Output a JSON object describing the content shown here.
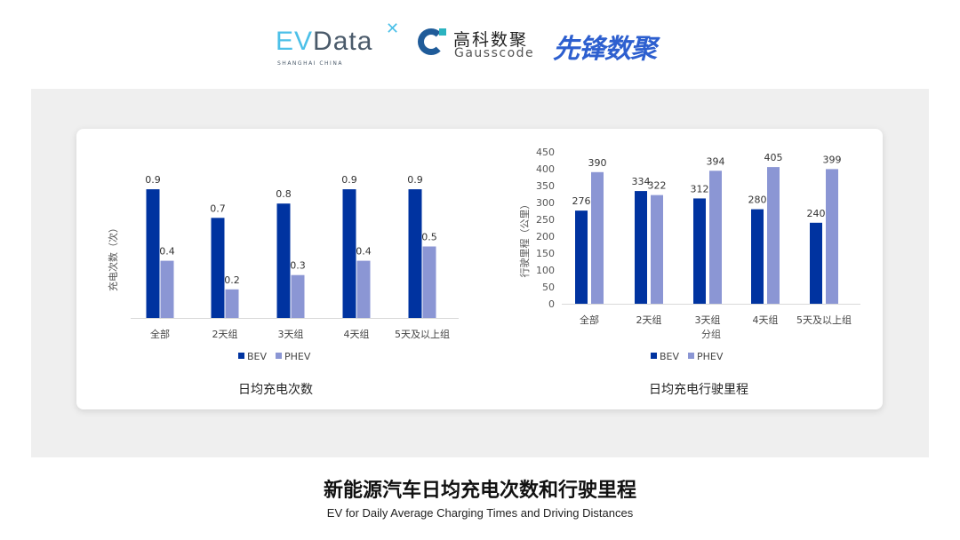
{
  "logos": {
    "evdata": {
      "text_ev": "EV",
      "text_data": "Data",
      "sub": "SHANGHAI CHINA"
    },
    "gausscode": {
      "cn": "高科数聚",
      "en": "Gausscode"
    },
    "xianfeng": {
      "cn": "先锋数聚"
    }
  },
  "colors": {
    "BEV": "#0033a0",
    "PHEV": "#8b96d4",
    "panel": "#efefef"
  },
  "chart_data": [
    {
      "type": "bar",
      "title": "日均充电次数",
      "ylabel": "充电次数（次）",
      "xlabel": "",
      "categories": [
        "全部",
        "2天组",
        "3天组",
        "4天组",
        "5天及以上组"
      ],
      "series": [
        {
          "name": "BEV",
          "values": [
            0.9,
            0.7,
            0.8,
            0.9,
            0.9
          ]
        },
        {
          "name": "PHEV",
          "values": [
            0.4,
            0.2,
            0.3,
            0.4,
            0.5
          ]
        }
      ],
      "ylim": [
        0,
        1.0
      ],
      "y_ticks_shown": false,
      "grid": false,
      "legend": "bottom"
    },
    {
      "type": "bar",
      "title": "日均充电行驶里程",
      "ylabel": "行驶里程（公里）",
      "xlabel": "分组",
      "categories": [
        "全部",
        "2天组",
        "3天组",
        "4天组",
        "5天及以上组"
      ],
      "series": [
        {
          "name": "BEV",
          "values": [
            276,
            334,
            312,
            280,
            240
          ]
        },
        {
          "name": "PHEV",
          "values": [
            390,
            322,
            394,
            405,
            399
          ]
        }
      ],
      "ylim": [
        0,
        450
      ],
      "yticks": [
        "0",
        "50",
        "100",
        "150",
        "200",
        "250",
        "300",
        "350",
        "400",
        "450"
      ],
      "grid": false,
      "legend": "bottom"
    }
  ],
  "footer": {
    "title": "新能源汽车日均充电次数和行驶里程",
    "subtitle": "EV for Daily Average Charging Times and Driving Distances"
  }
}
